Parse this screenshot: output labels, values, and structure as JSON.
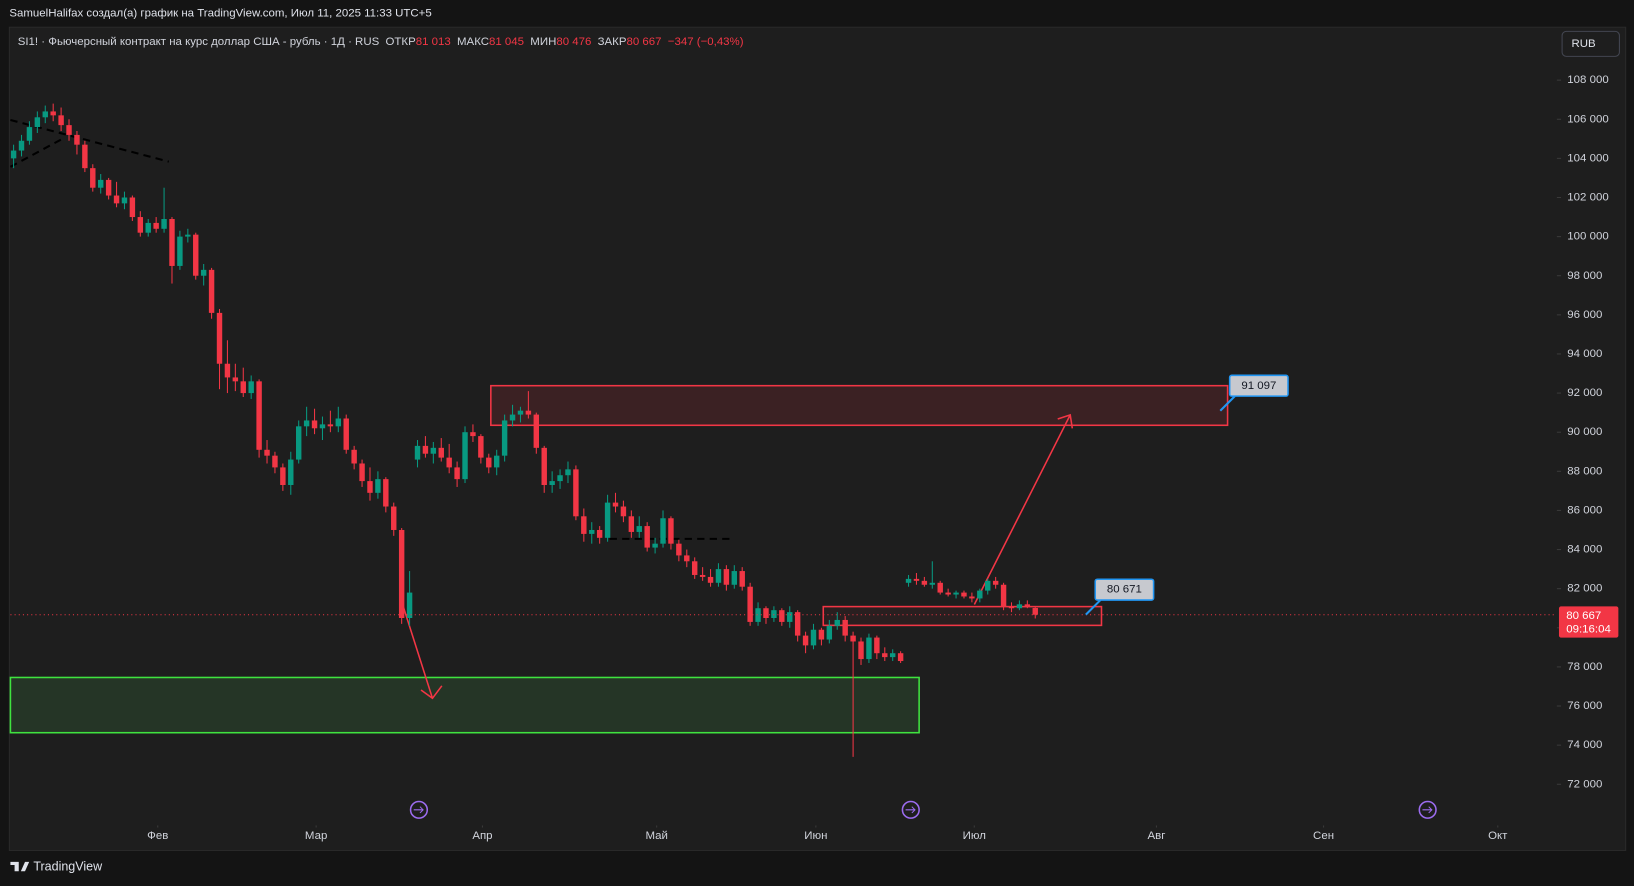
{
  "caption": "SamuelHalifax создал(а) график на TradingView.com, Июл 11, 2025 11:33 UTC+5",
  "branding": "TradingView",
  "currency_button": "RUB",
  "chart_data": {
    "type": "candlestick",
    "symbol": "SI1! · Фьючерсный контракт на курс доллар США - рубль · 1Д · RUS",
    "header_stats": {
      "open_label": "ОТКР",
      "open": {
        "value": 81013,
        "label": "81 013"
      },
      "high_label": "МАКС",
      "high": {
        "value": 81045,
        "label": "81 045"
      },
      "low_label": "МИН",
      "low": {
        "value": 80476,
        "label": "80 476"
      },
      "close_label": "ЗАКР",
      "close": {
        "value": 80667,
        "label": "80 667"
      },
      "change": "−347 (−0,43%)"
    },
    "last_price": {
      "value": 80667,
      "label": "80 667"
    },
    "countdown": "09:16:04",
    "up_color": "#089981",
    "down_color": "#f23645",
    "grid": false,
    "xlim": [
      -0.4,
      194.6
    ],
    "xticks": [
      {
        "value": 18.2,
        "label": "Фев"
      },
      {
        "value": 38.2,
        "label": "Мар"
      },
      {
        "value": 59.2,
        "label": "Апр"
      },
      {
        "value": 81.2,
        "label": "Май"
      },
      {
        "value": 101.3,
        "label": "Июн"
      },
      {
        "value": 121.3,
        "label": "Июл"
      },
      {
        "value": 144.3,
        "label": "Авг"
      },
      {
        "value": 165.4,
        "label": "Сен"
      },
      {
        "value": 187.4,
        "label": "Окт"
      }
    ],
    "ylim": [
      70000,
      110600
    ],
    "yticks": [
      {
        "value": 72000,
        "label": "72 000"
      },
      {
        "value": 74000,
        "label": "74 000"
      },
      {
        "value": 76000,
        "label": "76 000"
      },
      {
        "value": 78000,
        "label": "78 000"
      },
      {
        "value": 80000,
        "label": "80 000"
      },
      {
        "value": 82000,
        "label": "82 000"
      },
      {
        "value": 84000,
        "label": "84 000"
      },
      {
        "value": 86000,
        "label": "86 000"
      },
      {
        "value": 88000,
        "label": "88 000"
      },
      {
        "value": 90000,
        "label": "90 000"
      },
      {
        "value": 92000,
        "label": "92 000"
      },
      {
        "value": 94000,
        "label": "94 000"
      },
      {
        "value": 96000,
        "label": "96 000"
      },
      {
        "value": 98000,
        "label": "98 000"
      },
      {
        "value": 100000,
        "label": "100 000"
      },
      {
        "value": 102000,
        "label": "102 000"
      },
      {
        "value": 104000,
        "label": "104 000"
      },
      {
        "value": 106000,
        "label": "106 000"
      },
      {
        "value": 108000,
        "label": "108 000"
      }
    ],
    "annotations": [
      {
        "value": 91097,
        "label": "91 097"
      },
      {
        "value": 80671,
        "label": "80 671"
      }
    ],
    "ohlc": [
      [
        104000,
        104700,
        103500,
        104400
      ],
      [
        104400,
        105200,
        104100,
        104900
      ],
      [
        104900,
        105900,
        104700,
        105600
      ],
      [
        105600,
        106400,
        105300,
        106100
      ],
      [
        106100,
        106700,
        105800,
        106400
      ],
      [
        106400,
        106800,
        105900,
        106200
      ],
      [
        106200,
        106600,
        105400,
        105700
      ],
      [
        105700,
        106000,
        104900,
        105200
      ],
      [
        105200,
        105400,
        104200,
        104700
      ],
      [
        104700,
        104900,
        103300,
        103500
      ],
      [
        103500,
        103700,
        102300,
        102500
      ],
      [
        102500,
        103200,
        102200,
        102900
      ],
      [
        102900,
        103000,
        101900,
        102100
      ],
      [
        102100,
        102800,
        101500,
        101700
      ],
      [
        101700,
        102300,
        101400,
        102000
      ],
      [
        102000,
        102100,
        100800,
        101000
      ],
      [
        101000,
        101300,
        100000,
        100200
      ],
      [
        100200,
        100900,
        100000,
        100700
      ],
      [
        100700,
        101000,
        100200,
        100400
      ],
      [
        100400,
        102500,
        100200,
        100900
      ],
      [
        100900,
        101000,
        97600,
        98500
      ],
      [
        98500,
        100300,
        98300,
        100000
      ],
      [
        100000,
        100400,
        99700,
        100100
      ],
      [
        100100,
        100200,
        97800,
        98000
      ],
      [
        98000,
        98600,
        97500,
        98300
      ],
      [
        98300,
        98400,
        95800,
        96100
      ],
      [
        96100,
        96300,
        92200,
        93500
      ],
      [
        93500,
        94700,
        92000,
        92800
      ],
      [
        92800,
        93500,
        92100,
        92600
      ],
      [
        92600,
        93300,
        91800,
        92000
      ],
      [
        92000,
        92900,
        91700,
        92600
      ],
      [
        92600,
        92700,
        88700,
        89100
      ],
      [
        89100,
        89600,
        88400,
        88800
      ],
      [
        88800,
        89000,
        87900,
        88200
      ],
      [
        88200,
        88400,
        87000,
        87300
      ],
      [
        87300,
        89000,
        86800,
        88600
      ],
      [
        88600,
        90600,
        88400,
        90300
      ],
      [
        90300,
        91300,
        89800,
        90600
      ],
      [
        90600,
        91200,
        89900,
        90200
      ],
      [
        90200,
        90800,
        89600,
        90400
      ],
      [
        90400,
        91100,
        90000,
        90300
      ],
      [
        90300,
        91300,
        90000,
        90700
      ],
      [
        90700,
        90900,
        88900,
        89100
      ],
      [
        89100,
        89300,
        88100,
        88400
      ],
      [
        88400,
        88600,
        87200,
        87500
      ],
      [
        87500,
        88200,
        86500,
        86900
      ],
      [
        86900,
        88000,
        86600,
        87600
      ],
      [
        87600,
        87700,
        85900,
        86200
      ],
      [
        86200,
        86400,
        84700,
        85000
      ],
      [
        85000,
        85100,
        80200,
        80500
      ],
      [
        80500,
        82900,
        80100,
        81800
      ],
      [
        88600,
        89600,
        88200,
        89300
      ],
      [
        89300,
        89800,
        88700,
        88900
      ],
      [
        88900,
        89500,
        88400,
        89200
      ],
      [
        89200,
        89700,
        88500,
        88700
      ],
      [
        88700,
        89400,
        87900,
        88200
      ],
      [
        88200,
        88500,
        87200,
        87600
      ],
      [
        87600,
        90300,
        87400,
        90000
      ],
      [
        90000,
        90400,
        89500,
        89800
      ],
      [
        89800,
        89900,
        88400,
        88700
      ],
      [
        88700,
        88900,
        87900,
        88200
      ],
      [
        88200,
        89100,
        87800,
        88800
      ],
      [
        88800,
        90900,
        88500,
        90600
      ],
      [
        90600,
        91400,
        90300,
        90900
      ],
      [
        90900,
        91300,
        90500,
        91100
      ],
      [
        91100,
        92100,
        90700,
        90900
      ],
      [
        90900,
        91000,
        88900,
        89200
      ],
      [
        89200,
        89300,
        86900,
        87300
      ],
      [
        87300,
        88000,
        86900,
        87500
      ],
      [
        87500,
        88100,
        87100,
        87800
      ],
      [
        87800,
        88500,
        87400,
        88100
      ],
      [
        88100,
        88300,
        85500,
        85700
      ],
      [
        85700,
        86100,
        84400,
        84800
      ],
      [
        84800,
        85400,
        84300,
        85000
      ],
      [
        85000,
        85200,
        84300,
        84600
      ],
      [
        84600,
        86800,
        84400,
        86400
      ],
      [
        86400,
        86900,
        85900,
        86200
      ],
      [
        86200,
        86500,
        85400,
        85700
      ],
      [
        85700,
        86000,
        84600,
        84900
      ],
      [
        84900,
        85700,
        84600,
        85200
      ],
      [
        85200,
        85400,
        83900,
        84100
      ],
      [
        84100,
        84600,
        83800,
        84300
      ],
      [
        84300,
        86000,
        84100,
        85600
      ],
      [
        85600,
        85700,
        84000,
        84300
      ],
      [
        84300,
        84500,
        83400,
        83700
      ],
      [
        83700,
        84000,
        83100,
        83400
      ],
      [
        83400,
        83600,
        82500,
        82700
      ],
      [
        82700,
        83100,
        82400,
        82600
      ],
      [
        82600,
        83000,
        82100,
        82300
      ],
      [
        82300,
        83300,
        82100,
        83000
      ],
      [
        83000,
        83200,
        81900,
        82200
      ],
      [
        82200,
        83200,
        82000,
        82900
      ],
      [
        82900,
        83100,
        81900,
        82100
      ],
      [
        82100,
        82300,
        80100,
        80300
      ],
      [
        80300,
        81300,
        80100,
        81000
      ],
      [
        81000,
        81100,
        80200,
        80500
      ],
      [
        80500,
        81100,
        80300,
        80900
      ],
      [
        80900,
        81000,
        80100,
        80300
      ],
      [
        80300,
        81100,
        80000,
        80800
      ],
      [
        80800,
        80900,
        79300,
        79600
      ],
      [
        79600,
        79800,
        78700,
        79100
      ],
      [
        79100,
        80200,
        78900,
        79900
      ],
      [
        79900,
        80000,
        79100,
        79400
      ],
      [
        79400,
        80400,
        79200,
        80100
      ],
      [
        80100,
        80800,
        79900,
        80400
      ],
      [
        80400,
        80600,
        79300,
        79600
      ],
      [
        79600,
        79800,
        73400,
        79300
      ],
      [
        79300,
        79500,
        78100,
        78400
      ],
      [
        78400,
        79700,
        78200,
        79500
      ],
      [
        79500,
        79600,
        78400,
        78700
      ],
      [
        78700,
        79000,
        78300,
        78500
      ],
      [
        78500,
        78900,
        78300,
        78700
      ],
      [
        78700,
        78800,
        78200,
        78300
      ],
      [
        82300,
        82700,
        82100,
        82500
      ],
      [
        82500,
        82800,
        82200,
        82400
      ],
      [
        82400,
        82600,
        82100,
        82200
      ],
      [
        82200,
        83400,
        82000,
        82300
      ],
      [
        82300,
        82400,
        81700,
        81800
      ],
      [
        81800,
        82000,
        81600,
        81700
      ],
      [
        81700,
        81900,
        81500,
        81800
      ],
      [
        81800,
        81900,
        81500,
        81600
      ],
      [
        81600,
        81800,
        81300,
        81500
      ],
      [
        81500,
        82000,
        81300,
        81900
      ],
      [
        81900,
        82500,
        81700,
        82400
      ],
      [
        82400,
        82600,
        82000,
        82200
      ],
      [
        82200,
        82300,
        80900,
        81100
      ],
      [
        81100,
        81300,
        80800,
        81000
      ],
      [
        81000,
        81400,
        80900,
        81200
      ],
      [
        81200,
        81400,
        81000,
        81050
      ],
      [
        81013,
        81045,
        80476,
        80667
      ]
    ]
  }
}
